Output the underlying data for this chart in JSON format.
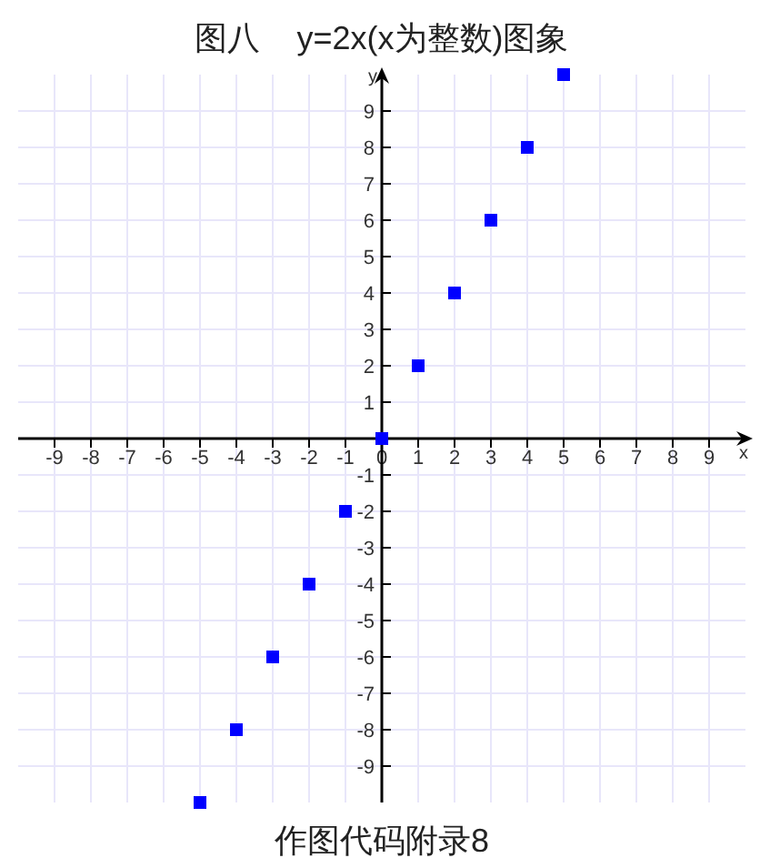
{
  "chart_data": {
    "type": "scatter",
    "title": "图八    y=2x(x为整数)图象",
    "xlabel": "x",
    "ylabel": "y",
    "annotations": [
      "作图代码附录8"
    ],
    "x": [
      -5,
      -4,
      -3,
      -2,
      -1,
      0,
      1,
      2,
      3,
      4,
      5
    ],
    "series": [
      {
        "color": "#0000ff",
        "values": [
          -10,
          -8,
          -6,
          -4,
          -2,
          0,
          2,
          4,
          6,
          8,
          10
        ]
      }
    ],
    "xlim": [
      -10,
      10
    ],
    "ylim": [
      -10,
      10
    ],
    "xticks": [
      -9,
      -8,
      -7,
      -6,
      -5,
      -4,
      -3,
      -2,
      -1,
      0,
      1,
      2,
      3,
      4,
      5,
      6,
      7,
      8,
      9
    ],
    "yticks": [
      -9,
      -8,
      -7,
      -6,
      -5,
      -4,
      -3,
      -2,
      -1,
      1,
      2,
      3,
      4,
      5,
      6,
      7,
      8,
      9
    ],
    "grid": true,
    "marker": "square"
  }
}
